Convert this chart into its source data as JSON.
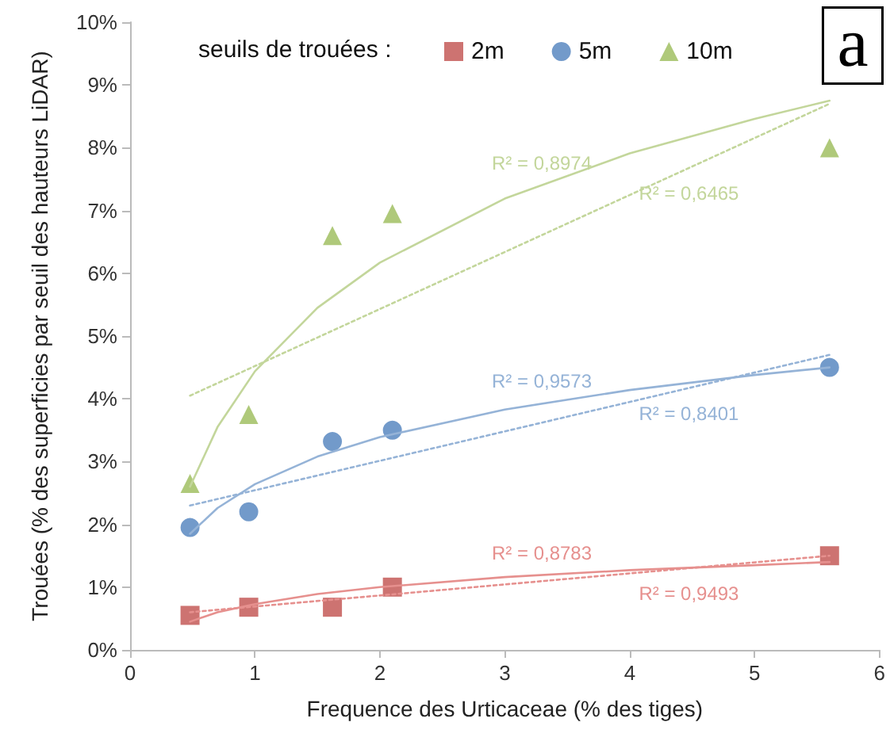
{
  "chart_data": {
    "type": "scatter",
    "xlabel": "Frequence des Urticaceae (% des tiges)",
    "ylabel": "Trouées (% des superficies par seuil des hauteurs LiDAR)",
    "legend_title": "seuils de trouées :",
    "legend": "top",
    "xlim": [
      0,
      6
    ],
    "xticks": [
      0,
      1,
      2,
      3,
      4,
      5,
      6
    ],
    "ylim": [
      0,
      10
    ],
    "yticks": [
      {
        "value": 0,
        "label": "0%"
      },
      {
        "value": 1,
        "label": "1%"
      },
      {
        "value": 2,
        "label": "2%"
      },
      {
        "value": 3,
        "label": "3%"
      },
      {
        "value": 4,
        "label": "4%"
      },
      {
        "value": 5,
        "label": "5%"
      },
      {
        "value": 6,
        "label": "6%"
      },
      {
        "value": 7,
        "label": "7%"
      },
      {
        "value": 8,
        "label": "8%"
      },
      {
        "value": 9,
        "label": "9%"
      },
      {
        "value": 10,
        "label": "10%"
      }
    ],
    "grid": false,
    "x": [
      0.48,
      0.95,
      1.62,
      2.1,
      5.6
    ],
    "series": [
      {
        "name": "2m",
        "color": "#c0504d",
        "marker": "square",
        "values": [
          0.55,
          0.68,
          0.68,
          1.0,
          1.5
        ]
      },
      {
        "name": "5m",
        "color": "#4f81bd",
        "marker": "circle",
        "values": [
          1.95,
          2.2,
          3.32,
          3.5,
          4.5
        ]
      },
      {
        "name": "10m",
        "color": "#9bbb59",
        "marker": "triangle",
        "values": [
          2.65,
          3.75,
          6.6,
          6.95,
          8.0
        ]
      },
      {
        "type": "line",
        "name": "R² = 0,8974",
        "color": "#c3d69b",
        "marker": "none",
        "line_style": "solid",
        "x": [
          0.48,
          0.7,
          1,
          1.5,
          2,
          3,
          4,
          5,
          5.6
        ],
        "values": [
          2.6,
          3.55,
          4.44,
          5.45,
          6.17,
          7.19,
          7.91,
          8.46,
          8.75
        ]
      },
      {
        "type": "line",
        "name": "R² = 0,6465",
        "color": "#c3d69b",
        "marker": "none",
        "line_style": "dotted",
        "x": [
          0.48,
          5.6
        ],
        "values": [
          4.05,
          8.7
        ]
      },
      {
        "type": "line",
        "name": "R² = 0,9573",
        "color": "#95b3d7",
        "marker": "none",
        "line_style": "solid",
        "x": [
          0.48,
          0.7,
          1,
          1.5,
          2,
          3,
          4,
          5,
          5.6
        ],
        "values": [
          1.85,
          2.26,
          2.64,
          3.08,
          3.39,
          3.83,
          4.14,
          4.38,
          4.5
        ]
      },
      {
        "type": "line",
        "name": "R² = 0,8401",
        "color": "#95b3d7",
        "marker": "none",
        "line_style": "dotted",
        "x": [
          0.48,
          5.6
        ],
        "values": [
          2.3,
          4.7
        ]
      },
      {
        "type": "line",
        "name": "R² = 0,8783",
        "color": "#e6908e",
        "marker": "none",
        "line_style": "solid",
        "x": [
          0.48,
          0.7,
          1,
          1.5,
          2,
          3,
          4,
          5,
          5.6
        ],
        "values": [
          0.45,
          0.6,
          0.73,
          0.89,
          1.0,
          1.16,
          1.27,
          1.35,
          1.4
        ]
      },
      {
        "type": "line",
        "name": "R² = 0,9493",
        "color": "#e6908e",
        "marker": "none",
        "line_style": "dotted",
        "x": [
          0.48,
          5.6
        ],
        "values": [
          0.6,
          1.5
        ]
      }
    ],
    "annotations": [
      "a"
    ]
  }
}
